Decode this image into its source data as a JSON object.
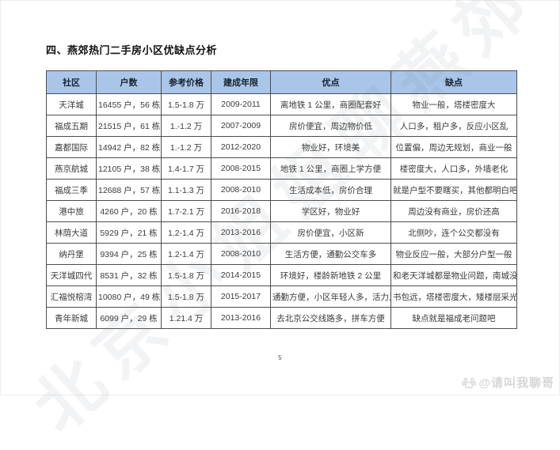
{
  "page": {
    "title": "四、燕郊热门二手房小区优缺点分析",
    "page_number": "5"
  },
  "table": {
    "headers": [
      "社区",
      "户数",
      "参考价格",
      "建成年限",
      "优点",
      "缺点"
    ],
    "rows": [
      [
        "天洋城",
        "16455 户，56 栋",
        "1.5-1.8 万",
        "2009-2011",
        "离地铁 1 公里，商圈配套好",
        "物业一般，塔楼密度大"
      ],
      [
        "福成五期",
        "21515 户，61 栋",
        "1.-1.2 万",
        "2007-2009",
        "房价便宜，周边物价低",
        "人口多，租户多，反应小区乱"
      ],
      [
        "嘉都国际",
        "14942 户，82 栋",
        "1.-1.2 万",
        "2012-2020",
        "物业好，环境美",
        "位置偏，周边无规划，商业一般"
      ],
      [
        "燕京航城",
        "12105 户，38 栋",
        "1.4-1.7 万",
        "2008-2015",
        "地铁 1 公里，商圈上学方便",
        "楼密度大，人口多，外墙老化"
      ],
      [
        "福成三季",
        "12688 户，57 栋",
        "1.1-1.3 万",
        "2008-2010",
        "生活成本低，房价合理",
        "就是户型不要瞎买，其他都明白吧"
      ],
      [
        "港中旅",
        "4260 户，20 栋",
        "1.7-2.1 万",
        "2016-2018",
        "学区好，物业好",
        "周边没有商业，房价还高"
      ],
      [
        "林荫大道",
        "5929 户，21 栋",
        "1.2-1.4 万",
        "2013-2016",
        "房价便宜，小区新",
        "北侧吵，连个公交都没有"
      ],
      [
        "纳丹堡",
        "9394 户，25 栋",
        "1.2-1.4 万",
        "2008-2010",
        "生活方便，通勤公交车多",
        "物业反应一般，大部分户型一般"
      ],
      [
        "天洋城四代",
        "8531 户，32 栋",
        "1.5-1.8 万",
        "2014-2015",
        "环境好，楼龄新地铁 2 公里",
        "和老天洋城都是物业问题，南城没有商圈"
      ],
      [
        "汇福悦榕湾",
        "10080 户，49 栋",
        "1.5-1.8 万",
        "2015-2017",
        "通勤方便，小区年轻人多，活力足",
        "书包远，塔楼密度大，矮楼层采光不好"
      ],
      [
        "青年新城",
        "6099 户，29 栋",
        "1.21.4 万",
        "2013-2016",
        "去北京公交线路多，拼车方便",
        "缺点就是福成老问题吧"
      ]
    ]
  },
  "watermark": {
    "diagonal_text": "北京小姐姐聊燕郊",
    "credit_text": "@请叫我聊哥",
    "logo_icon": "baidu-paw-icon"
  },
  "colors": {
    "header_bg": "#a9c6e9",
    "table_border": "#4d4d4d",
    "body_text": "#3a3a3a",
    "watermark_gray": "#d6d6d6"
  }
}
